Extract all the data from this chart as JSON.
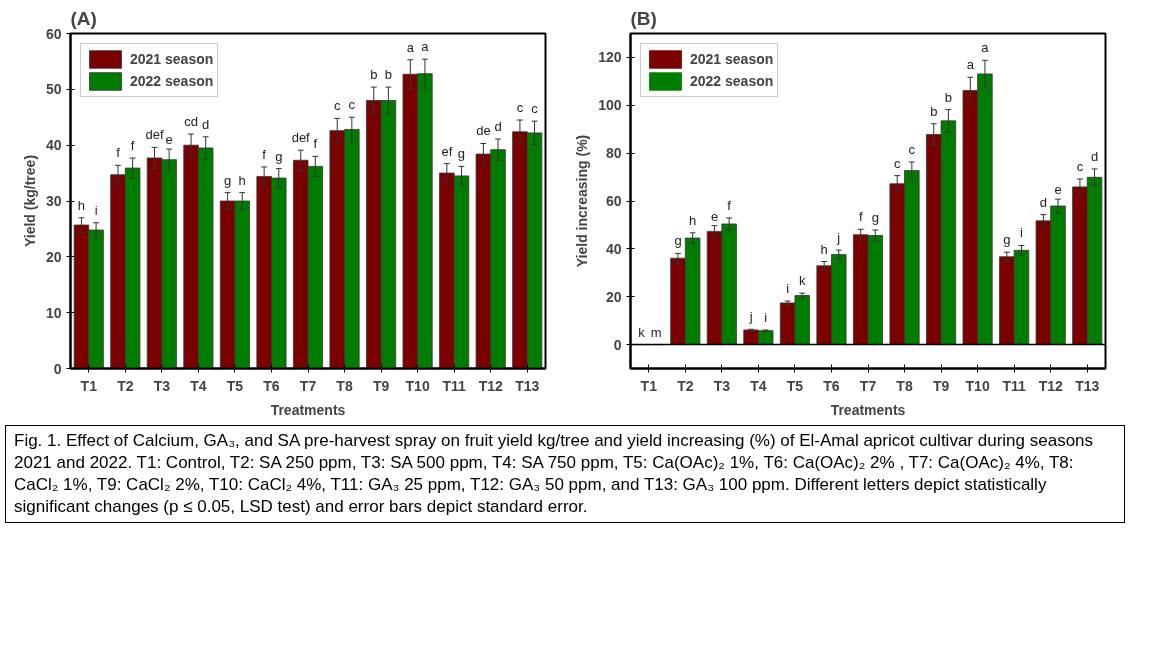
{
  "chart_data": [
    {
      "type": "bar",
      "title": "(A)",
      "xlabel": "Treatments",
      "ylabel": "Yield (kg/tree)",
      "categories": [
        "T1",
        "T2",
        "T3",
        "T4",
        "T5",
        "T6",
        "T7",
        "T8",
        "T9",
        "T10",
        "T11",
        "T12",
        "T13"
      ],
      "series": [
        {
          "name": "2021 season",
          "color": "#7b0000",
          "values": [
            25.7,
            34.7,
            37.7,
            40.0,
            30.0,
            34.4,
            37.3,
            42.6,
            48.0,
            52.7,
            35.0,
            38.4,
            42.4
          ],
          "errors": [
            1.3,
            1.7,
            1.9,
            2.0,
            1.5,
            1.7,
            1.8,
            2.2,
            2.4,
            2.6,
            1.7,
            1.9,
            2.1
          ],
          "value_labels": [
            "h",
            "f",
            "def",
            "cd",
            "g",
            "f",
            "def",
            "c",
            "b",
            "a",
            "ef",
            "de",
            "c"
          ]
        },
        {
          "name": "2022 season",
          "color": "#007d00",
          "values": [
            24.8,
            35.9,
            37.4,
            39.5,
            30.0,
            34.1,
            36.2,
            42.8,
            48.0,
            52.8,
            34.5,
            39.2,
            42.2
          ],
          "errors": [
            1.3,
            1.8,
            1.9,
            2.0,
            1.5,
            1.7,
            1.8,
            2.2,
            2.4,
            2.6,
            1.7,
            1.9,
            2.1
          ],
          "value_labels": [
            "i",
            "f",
            "e",
            "d",
            "h",
            "g",
            "f",
            "c",
            "b",
            "a",
            "g",
            "d",
            "c"
          ]
        }
      ],
      "ylim": [
        0,
        60
      ],
      "yticks": [
        0,
        10,
        20,
        30,
        40,
        50,
        60
      ],
      "grid": false,
      "legend": "top left",
      "annotations": [
        "Fig. 1. Effect of Calcium, GA₃, and SA pre-harvest spray on fruit yield kg/tree and yield increasing (%) of El-Amal apricot cultivar during seasons 2021 and 2022. T1: Control, T2: SA 250 ppm, T3: SA 500 ppm, T4: SA 750 ppm, T5: Ca(OAc)₂ 1%, T6: Ca(OAc)₂ 2% , T7: Ca(OAc)₂  4%, T8: CaCl₂ 1%, T9: CaCl₂ 2%, T10: CaCl₂  4%, T11: GA₃ 25 ppm, T12: GA₃ 50 ppm, and T13: GA₃ 100 ppm. Different letters depict statistically significant changes (p ≤ 0.05, LSD test) and error bars depict standard error."
      ]
    },
    {
      "type": "bar",
      "title": "(B)",
      "xlabel": "Treatments",
      "ylabel": "Yield increasing (%)",
      "categories": [
        "T1",
        "T2",
        "T3",
        "T4",
        "T5",
        "T6",
        "T7",
        "T8",
        "T9",
        "T10",
        "T11",
        "T12",
        "T13"
      ],
      "series": [
        {
          "name": "2021 season",
          "color": "#7b0000",
          "values": [
            0,
            36.1,
            47.3,
            6.1,
            17.4,
            32.9,
            45.9,
            67.2,
            87.8,
            106.2,
            36.7,
            51.7,
            65.9
          ],
          "errors": [
            null,
            2.0,
            2.4,
            0.3,
            0.8,
            1.8,
            2.3,
            3.4,
            4.5,
            5.5,
            1.9,
            2.6,
            3.3
          ],
          "value_labels": [
            "k",
            "g",
            "e",
            "j",
            "i",
            "h",
            "f",
            "c",
            "b",
            "a",
            "g",
            "d",
            "c"
          ]
        },
        {
          "name": "2022 season",
          "color": "#007d00",
          "values": [
            0,
            44.5,
            50.4,
            5.8,
            20.5,
            37.6,
            45.6,
            72.7,
            93.5,
            113.1,
            39.4,
            57.9,
            69.9
          ],
          "errors": [
            null,
            2.2,
            2.5,
            0.3,
            1.0,
            1.9,
            2.3,
            3.6,
            4.7,
            5.7,
            2.0,
            2.9,
            3.5
          ],
          "value_labels": [
            "m",
            "h",
            "f",
            "i",
            "k",
            "j",
            "g",
            "c",
            "b",
            "a",
            "i",
            "e",
            "d"
          ]
        }
      ],
      "ylim": [
        -10,
        130
      ],
      "yticks": [
        0,
        20,
        40,
        60,
        80,
        100,
        120
      ],
      "grid": false,
      "legend": "top left",
      "ref_lines": [
        {
          "axis": "y",
          "value": 0,
          "color": "#000000"
        }
      ]
    }
  ]
}
